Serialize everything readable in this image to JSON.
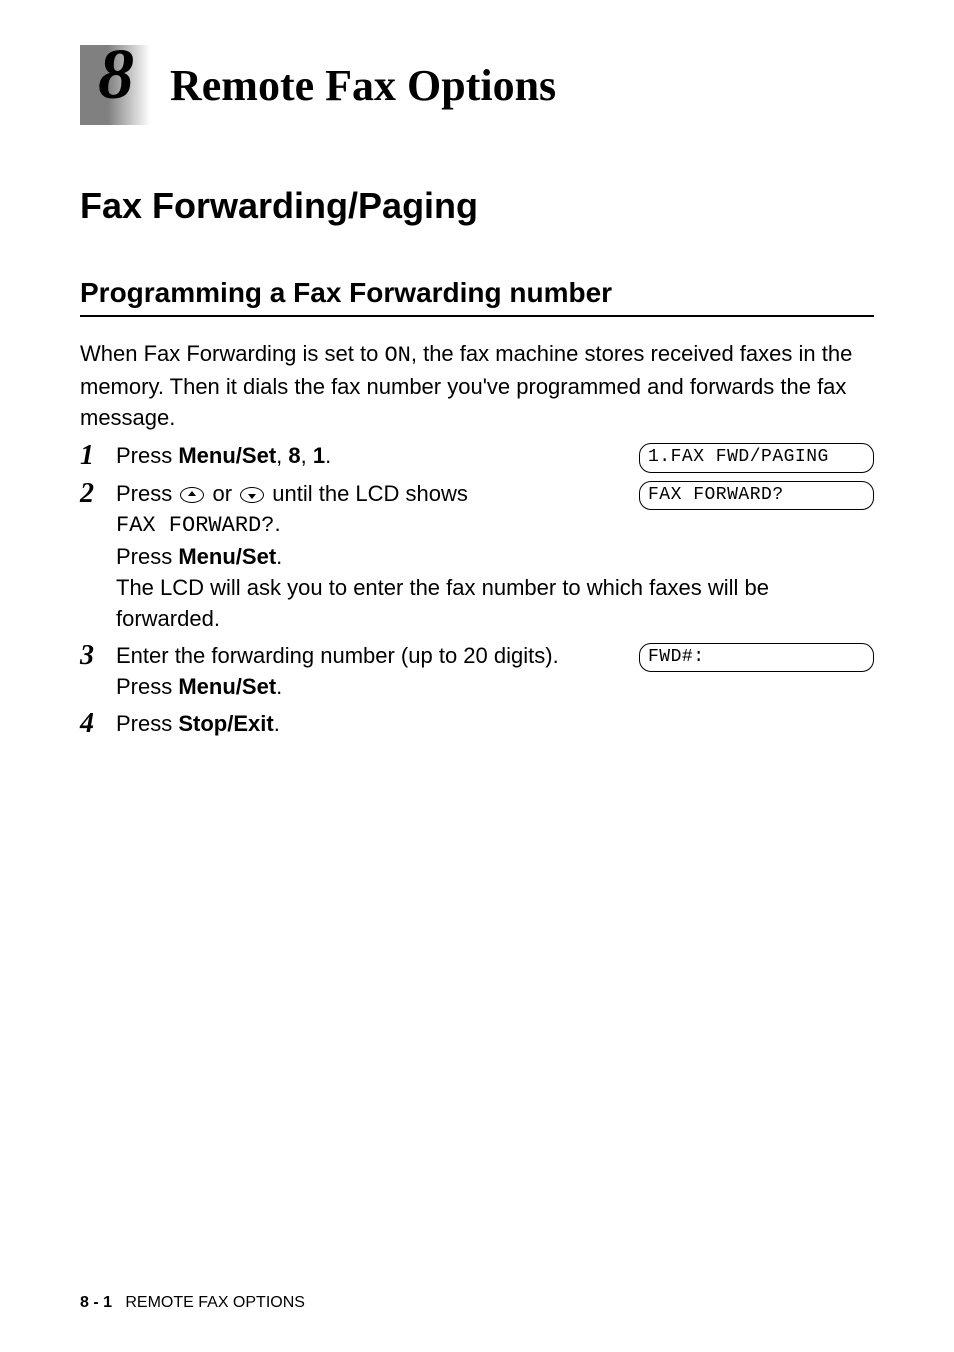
{
  "chapter": {
    "number": "8",
    "title": "Remote Fax Options"
  },
  "section": {
    "title": "Fax Forwarding/Paging"
  },
  "subsection": {
    "title": "Programming a Fax Forwarding number"
  },
  "intro": {
    "text_part1": "When Fax Forwarding is set to ",
    "text_on": "ON",
    "text_part2": ", the fax machine stores received faxes in the memory. Then it dials the fax number you've programmed and forwards the fax message."
  },
  "steps": {
    "s1": {
      "num": "1",
      "prefix": "Press ",
      "b1": "Menu/Set",
      "sep1": ", ",
      "b2": "8",
      "sep2": ", ",
      "b3": "1",
      "suffix": ".",
      "lcd": "1.FAX FWD/PAGING"
    },
    "s2": {
      "num": "2",
      "prefix": "Press ",
      "mid": " or ",
      "suffix": " until the LCD shows ",
      "mono": "FAX FORWARD?",
      "period": ".",
      "press": "Press ",
      "b1": "Menu/Set",
      "press_suffix": ".",
      "lcd": "FAX FORWARD?",
      "note": "The LCD will ask you to enter the fax number to which faxes will be forwarded."
    },
    "s3": {
      "num": "3",
      "line1": "Enter the forwarding number (up to 20 digits).",
      "press": "Press ",
      "b1": "Menu/Set",
      "press_suffix": ".",
      "lcd": "FWD#:"
    },
    "s4": {
      "num": "4",
      "press": "Press ",
      "b1": "Stop/Exit",
      "press_suffix": "."
    }
  },
  "footer": {
    "page": "8 - 1",
    "label": "REMOTE FAX OPTIONS"
  }
}
